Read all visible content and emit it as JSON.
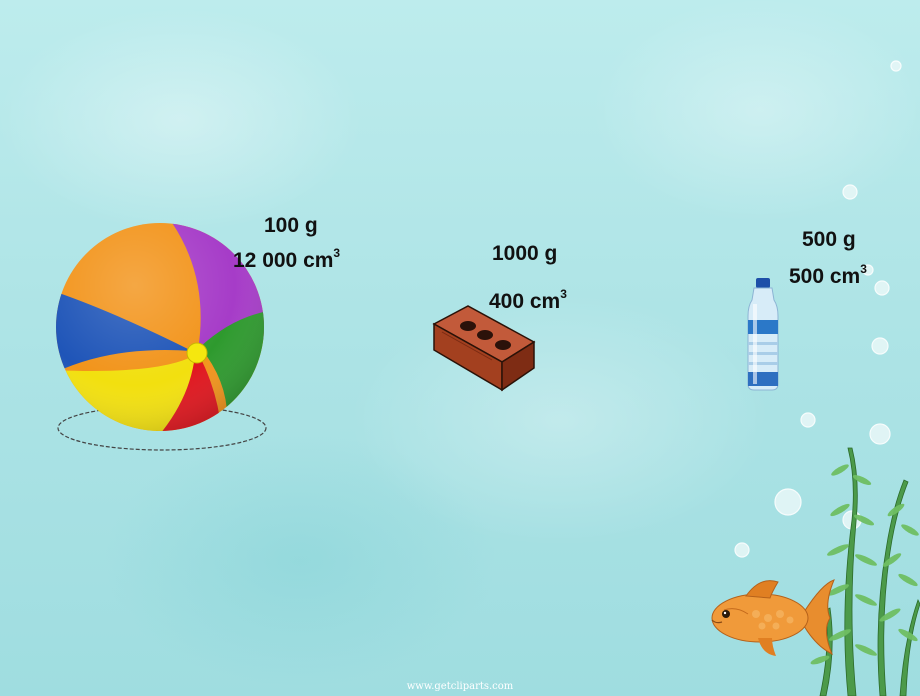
{
  "items": [
    {
      "mass": "100 g",
      "volume": "12 000 cm",
      "exp": "3"
    },
    {
      "mass": "1000 g",
      "volume": "400 cm",
      "exp": "3"
    },
    {
      "mass": "500 g",
      "volume": "500 cm",
      "exp": "3"
    }
  ],
  "credit": "www.getcliparts.com",
  "colors": {
    "background": "#aee4e6",
    "ball_orange": "#f2941b",
    "ball_purple": "#a63cc8",
    "ball_green": "#2e9a2e",
    "ball_red": "#e0161e",
    "ball_yellow": "#f2e00f",
    "ball_blue": "#1f55b8",
    "brick": "#b24a2c",
    "fish": "#f09a3a"
  },
  "icons": [
    "beach-ball-icon",
    "brick-icon",
    "water-bottle-icon",
    "goldfish-icon",
    "seaweed-icon",
    "bubble-icon"
  ]
}
